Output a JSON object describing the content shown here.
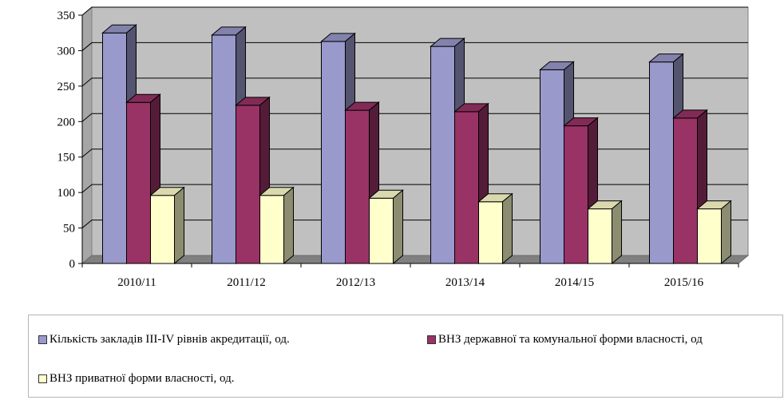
{
  "chart_data": {
    "type": "bar",
    "categories": [
      "2010/11",
      "2011/12",
      "2012/13",
      "2013/14",
      "2014/15",
      "2015/16"
    ],
    "series": [
      {
        "name": "Кількість закладів ІІІ-IV рівнів акредитації, од.",
        "values": [
          325,
          322,
          313,
          306,
          273,
          284
        ],
        "color": "#9999cc"
      },
      {
        "name": "ВНЗ державної та комунальної форми власності, од",
        "values": [
          227,
          223,
          216,
          214,
          194,
          205
        ],
        "color": "#993366"
      },
      {
        "name": "ВНЗ приватної форми власності, од.",
        "values": [
          96,
          96,
          92,
          87,
          77,
          77
        ],
        "color": "#ffffcc"
      }
    ],
    "yticks": [
      "0",
      "50",
      "100",
      "150",
      "200",
      "250",
      "300",
      "350"
    ],
    "ylim": [
      0,
      350
    ],
    "grid": true,
    "legend_position": "bottom"
  }
}
